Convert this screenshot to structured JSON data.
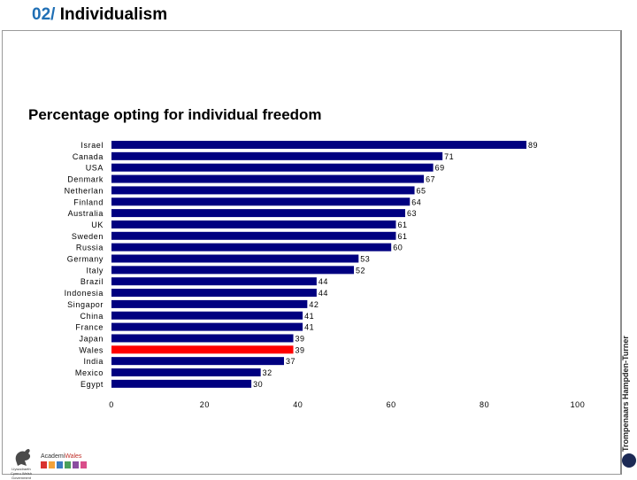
{
  "header": {
    "number": "02/",
    "title": "Individualism"
  },
  "footer": {
    "logo_left_text": "Llywodraeth Cymru Welsh Government",
    "logo_mid_prefix": "Academi",
    "logo_mid_suffix": "Wales",
    "brand_text": "Trompenaars Hampden-Turner"
  },
  "colors": {
    "bar": "#000080",
    "highlight": "#ff0000",
    "accent": "#1f6fb5"
  },
  "chart_data": {
    "type": "bar",
    "orientation": "horizontal",
    "title": "Percentage opting for individual freedom",
    "xlabel": "",
    "ylabel": "",
    "xlim": [
      0,
      100
    ],
    "xticks": [
      0,
      20,
      40,
      60,
      80,
      100
    ],
    "grid": false,
    "highlight": "Wales",
    "categories": [
      "Israel",
      "Canada",
      "USA",
      "Denmark",
      "Netherlan",
      "Finland",
      "Australia",
      "UK",
      "Sweden",
      "Russia",
      "Germany",
      "Italy",
      "Brazil",
      "Indonesia",
      "Singapor",
      "China",
      "France",
      "Japan",
      "Wales",
      "India",
      "Mexico",
      "Egypt"
    ],
    "values": [
      89,
      71,
      69,
      67,
      65,
      64,
      63,
      61,
      61,
      60,
      53,
      52,
      44,
      44,
      42,
      41,
      41,
      39,
      39,
      37,
      32,
      30
    ]
  }
}
